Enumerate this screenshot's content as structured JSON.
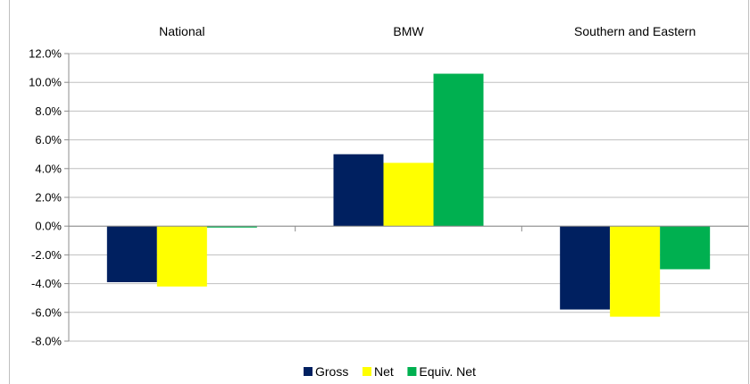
{
  "chart_data": {
    "type": "bar",
    "categories": [
      "National",
      "BMW",
      "Southern and Eastern"
    ],
    "series": [
      {
        "name": "Gross",
        "color": "#002060",
        "values": [
          -3.9,
          5.0,
          -5.8
        ]
      },
      {
        "name": "Net",
        "color": "#ffff00",
        "values": [
          -4.2,
          4.4,
          -6.3
        ]
      },
      {
        "name": "Equiv. Net",
        "color": "#00b050",
        "values": [
          -0.1,
          10.6,
          -3.0
        ]
      }
    ],
    "ylim": [
      -8,
      12
    ],
    "ytick_step": 2,
    "ytick_labels": [
      "12.0%",
      "10.0%",
      "8.0%",
      "6.0%",
      "4.0%",
      "2.0%",
      "0.0%",
      "-2.0%",
      "-4.0%",
      "-6.0%",
      "-8.0%"
    ],
    "grid": true,
    "legend_position": "bottom",
    "category_label_position": "top"
  }
}
